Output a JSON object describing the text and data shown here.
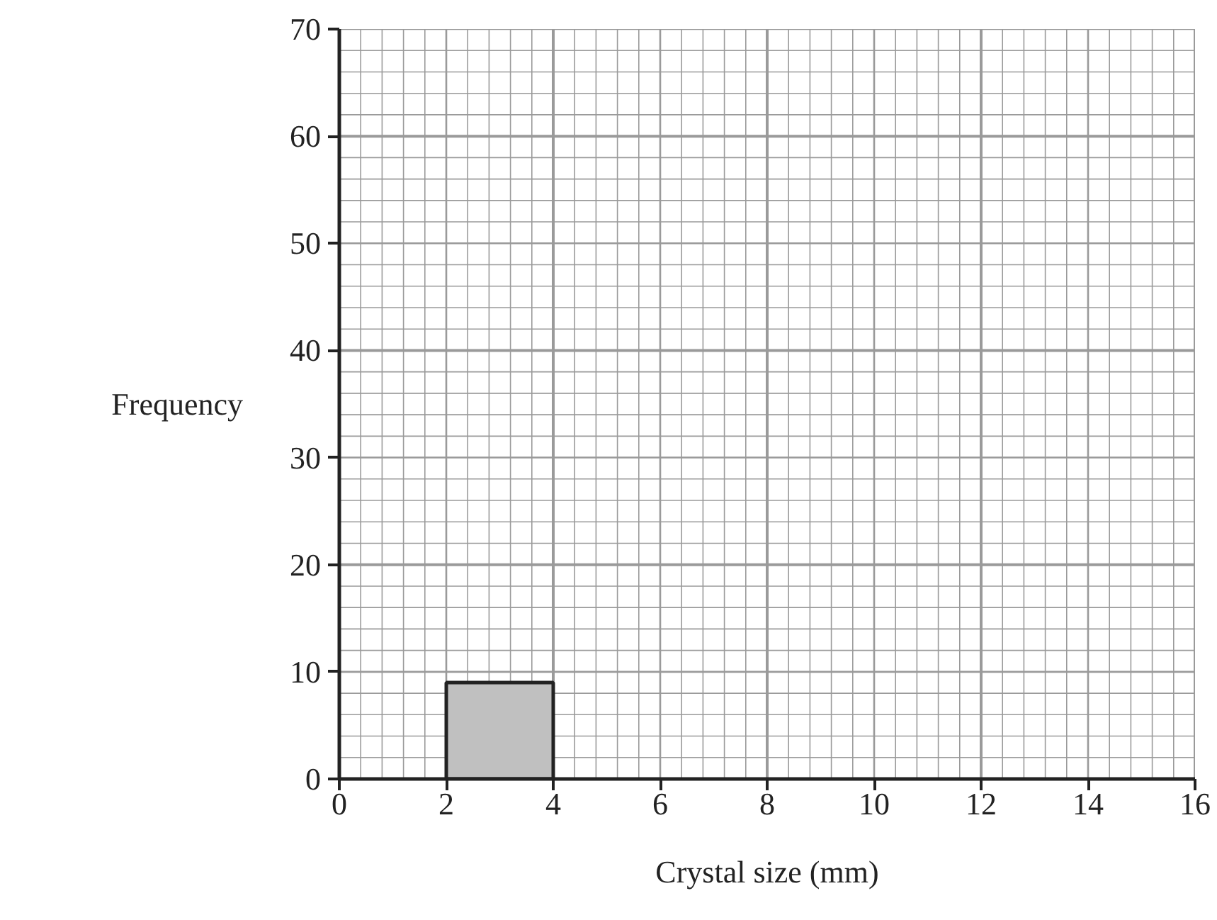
{
  "chart_data": {
    "type": "histogram",
    "xlabel": "Crystal size (mm)",
    "ylabel": "Frequency",
    "bins": [
      2,
      4
    ],
    "values": [
      9
    ],
    "color": "#c0c0c0",
    "xlim": [
      0,
      16
    ],
    "ylim": [
      0,
      70
    ],
    "xticks": [
      0,
      2,
      4,
      6,
      8,
      10,
      12,
      14,
      16
    ],
    "yticks": [
      0,
      10,
      20,
      30,
      40,
      50,
      60,
      70
    ],
    "grid": true
  }
}
